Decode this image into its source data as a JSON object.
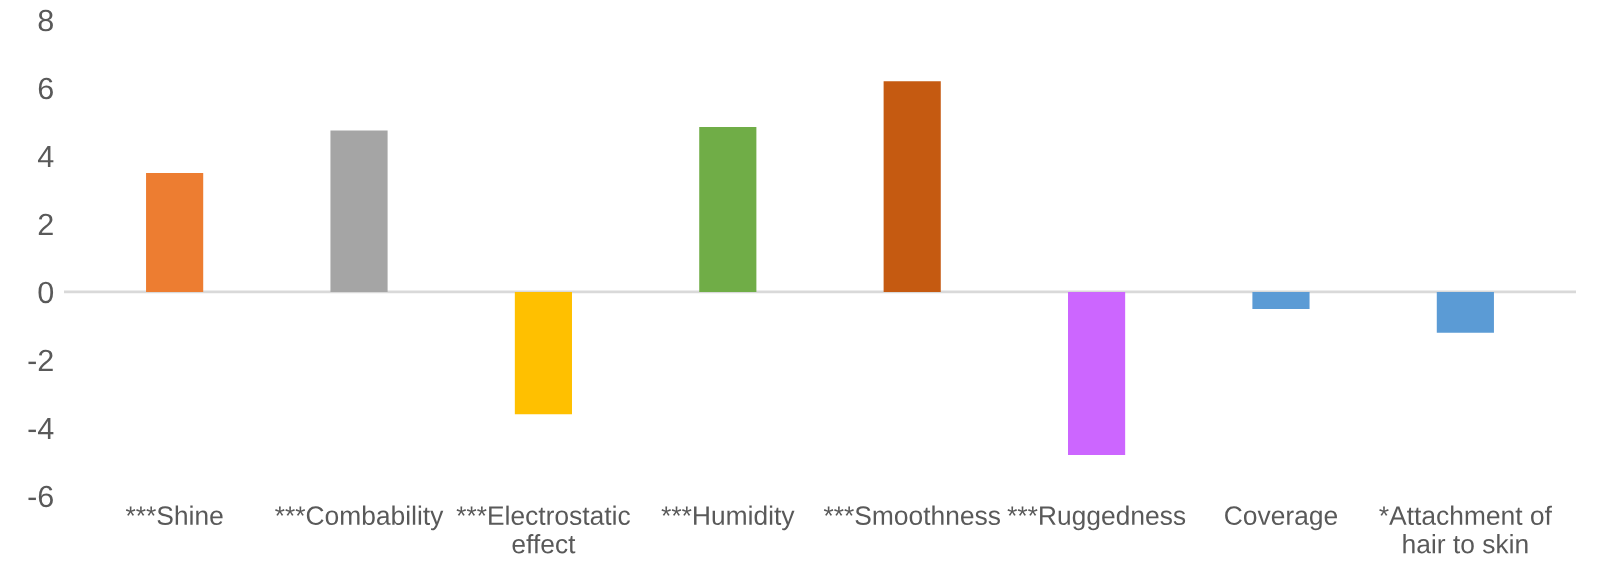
{
  "chart_data": {
    "type": "bar",
    "categories": [
      "***Shine",
      "***Combability",
      "***Electrostatic\neffect",
      "***Humidity",
      "***Smoothness",
      "***Ruggedness",
      "Coverage",
      "*Attachment of\nhair to skin"
    ],
    "values": [
      3.5,
      4.75,
      -3.6,
      4.85,
      6.2,
      -4.8,
      -0.5,
      -1.2
    ],
    "colors": [
      "#ed7d31",
      "#a5a5a5",
      "#ffc000",
      "#70ad47",
      "#c55a11",
      "#cc66ff",
      "#5b9bd5",
      "#5b9bd5"
    ],
    "ylim": [
      -6,
      8
    ],
    "yticks": [
      -6,
      -4,
      -2,
      0,
      2,
      4,
      6,
      8
    ],
    "grid": false,
    "ref_lines": [
      {
        "axis": "y",
        "value": 0,
        "color": "#d9d9d9"
      }
    ]
  }
}
